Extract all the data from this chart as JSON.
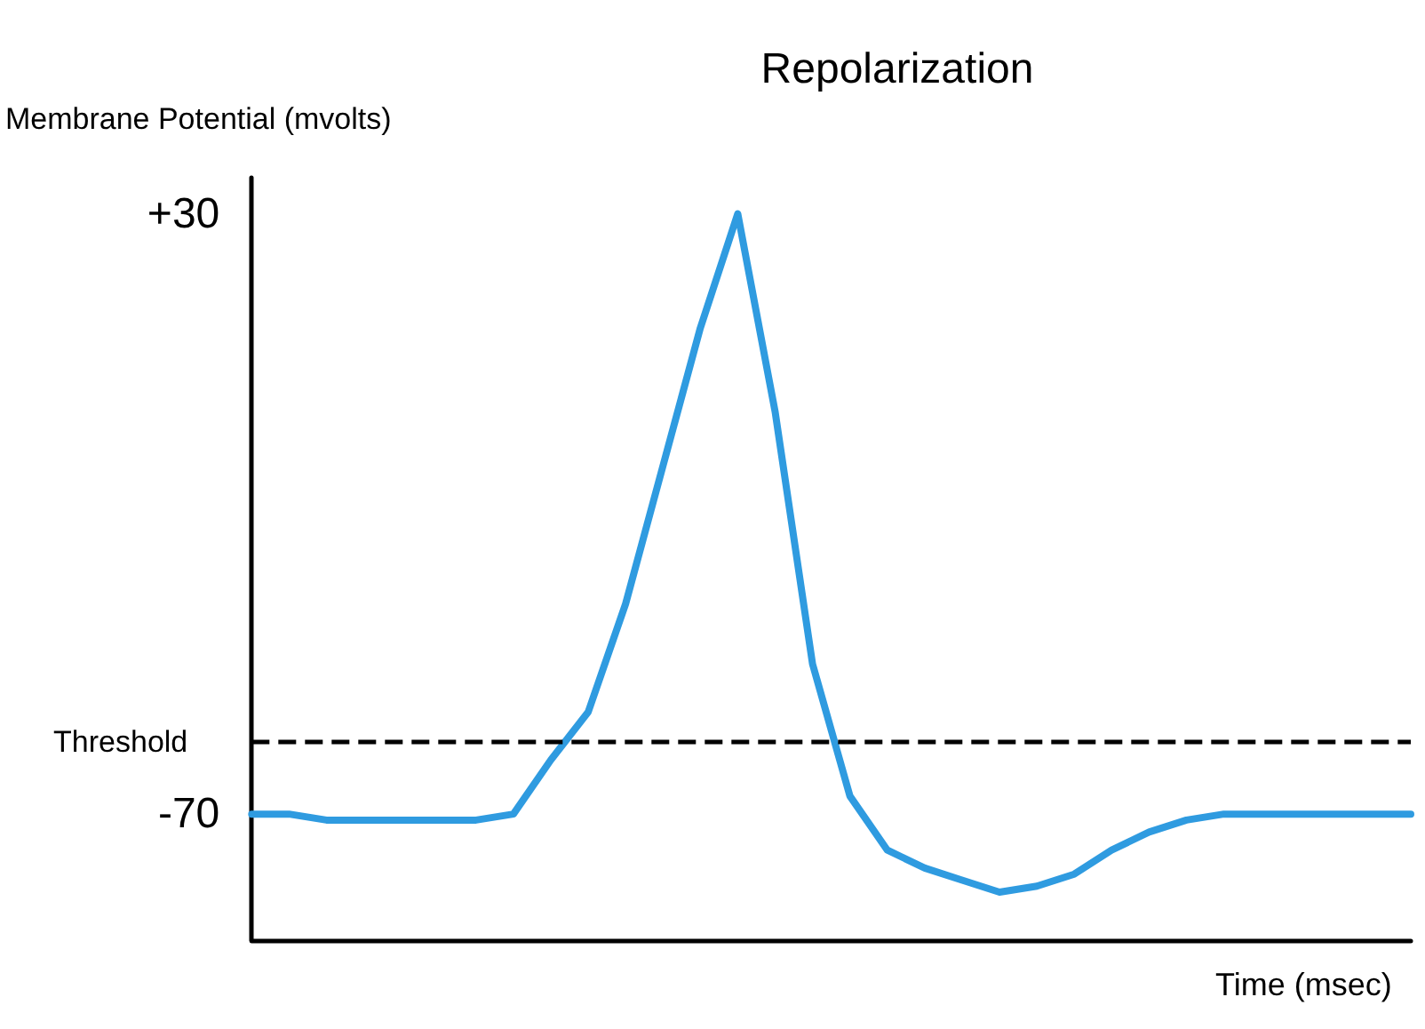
{
  "chart_data": {
    "type": "line",
    "title": "Repolarization",
    "xlabel": "Time (msec)",
    "ylabel": "Membrane Potential (mvolts)",
    "categories": [
      null,
      null,
      null,
      null,
      null,
      null,
      null,
      null,
      null,
      null,
      null,
      null,
      null,
      null,
      null,
      null,
      null,
      null,
      null,
      null,
      null,
      null,
      null,
      null,
      null,
      null,
      null,
      null,
      null,
      null,
      null,
      null
    ],
    "series": [
      {
        "color": "#2f9be0",
        "values": [
          -70,
          -70,
          -71,
          -71,
          -71,
          -71,
          -71,
          -70,
          -61,
          -53,
          -35,
          -12,
          11,
          30,
          -3,
          -45,
          -67,
          -76,
          -79,
          -81,
          -83,
          -82,
          -80,
          -76,
          -73,
          -71,
          -70,
          -70,
          -70,
          -70,
          -70,
          -70
        ]
      }
    ],
    "ylim": [
      -91,
      36
    ],
    "yticks": [
      {
        "value": 30,
        "label": "+30"
      },
      -70
    ],
    "ref_lines": [
      {
        "axis": "y",
        "value": -58,
        "label": "Threshold",
        "color": "#000000",
        "line_style": "dashed"
      }
    ],
    "marker": "none",
    "line_style": "solid",
    "tick_labels": "y"
  }
}
